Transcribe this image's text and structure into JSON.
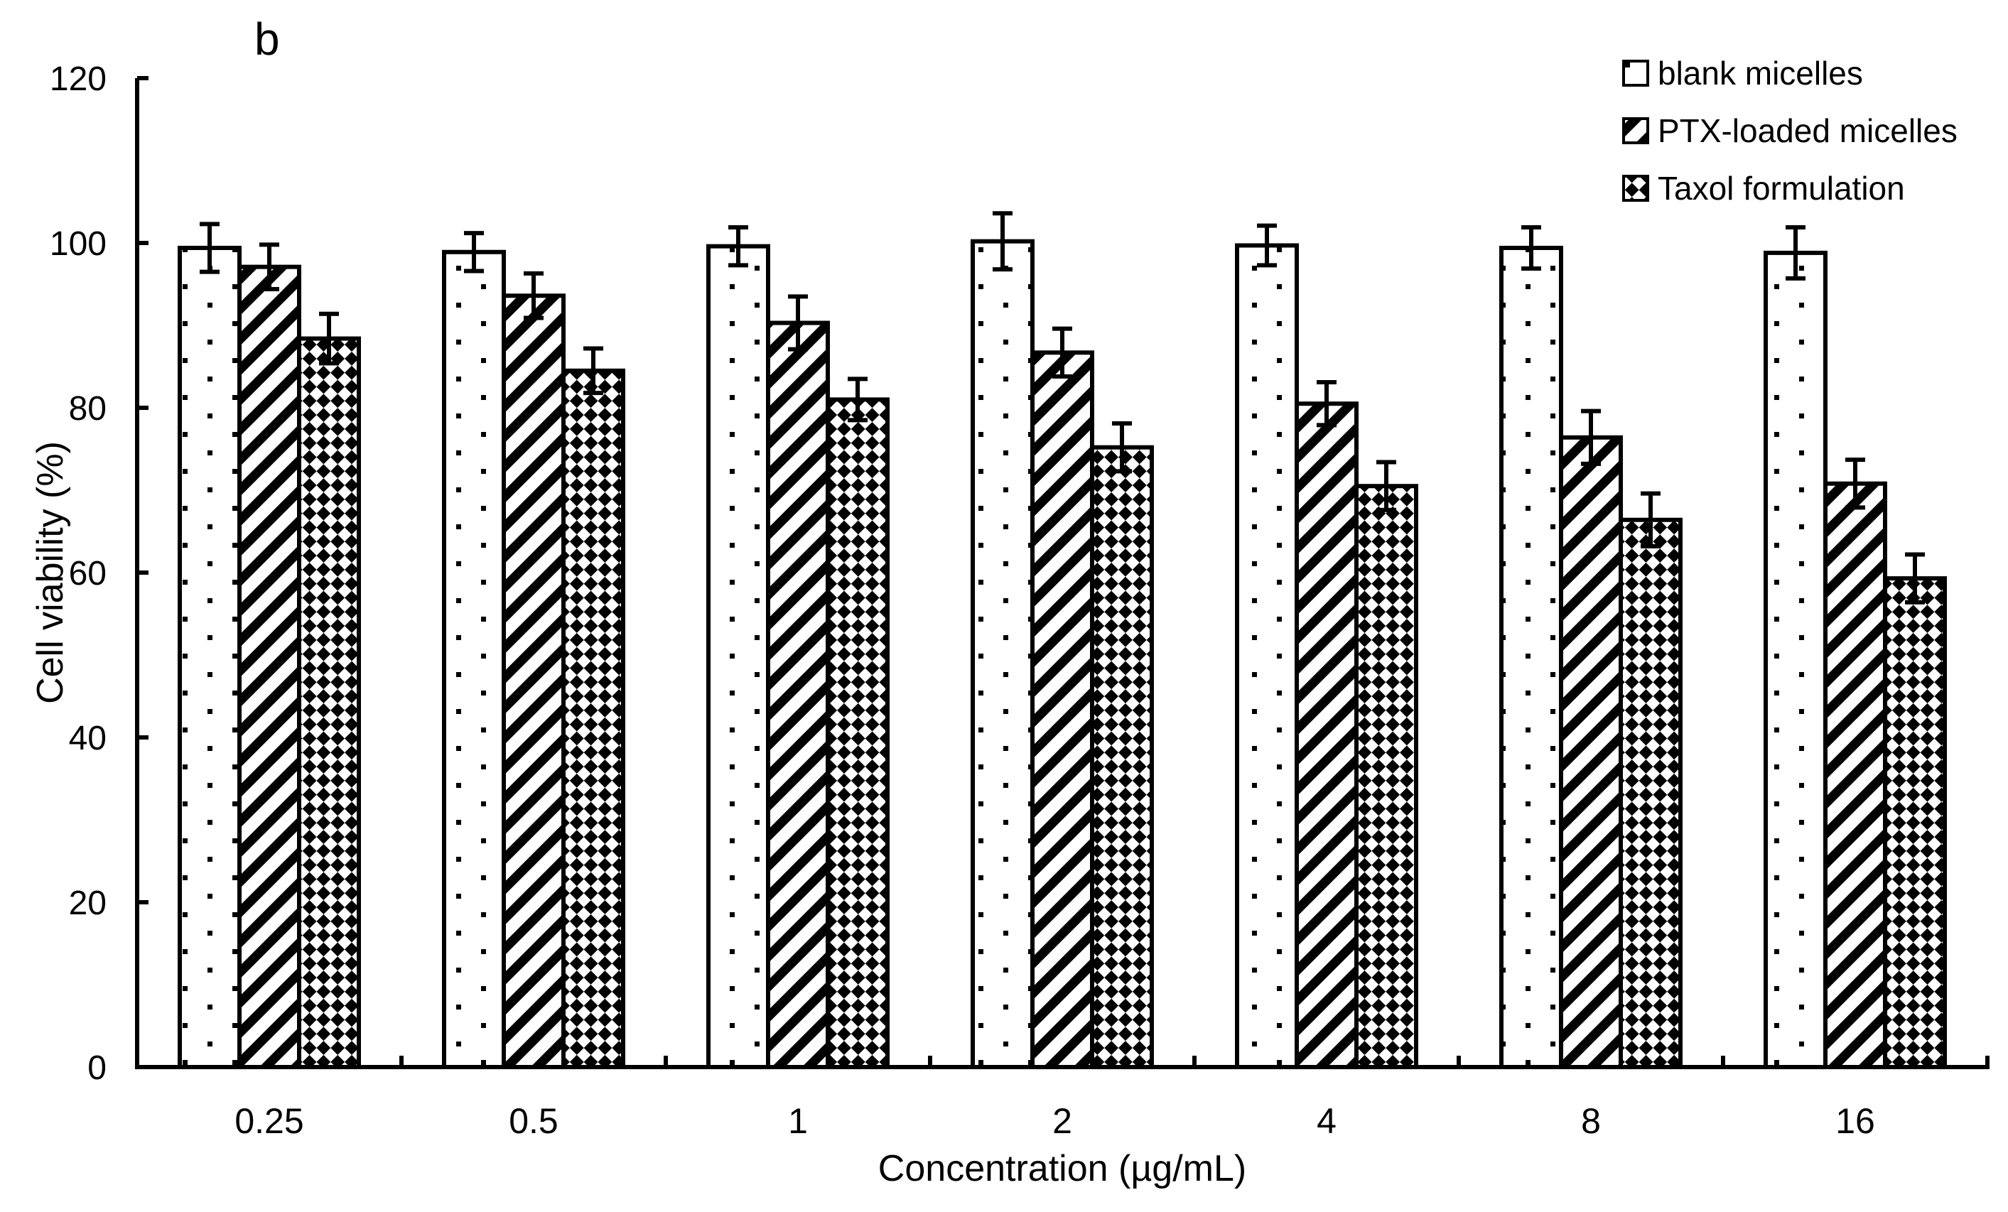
{
  "panel_label": "b",
  "chart_data": {
    "type": "bar",
    "title": "",
    "panel_label": "b",
    "xlabel": "Concentration (µg/mL)",
    "ylabel": "Cell viability (%)",
    "ylim": [
      0,
      120
    ],
    "yticks": [
      0,
      20,
      40,
      60,
      80,
      100,
      120
    ],
    "categories": [
      "0.25",
      "0.5",
      "1",
      "2",
      "4",
      "8",
      "16"
    ],
    "series": [
      {
        "name": "blank micelles",
        "pattern": "dots",
        "values": [
          99.4,
          98.9,
          99.6,
          100.2,
          99.7,
          99.4,
          98.8
        ],
        "errors": [
          2.9,
          2.3,
          2.3,
          3.4,
          2.4,
          2.5,
          3.1
        ]
      },
      {
        "name": "PTX-loaded micelles",
        "pattern": "diagonal-stripes",
        "values": [
          97.1,
          93.6,
          90.3,
          86.7,
          80.5,
          76.4,
          70.8
        ],
        "errors": [
          2.7,
          2.7,
          3.2,
          2.9,
          2.6,
          3.2,
          2.9
        ]
      },
      {
        "name": "Taxol formulation",
        "pattern": "diagonal-crosshatch",
        "values": [
          88.4,
          84.5,
          81.0,
          75.2,
          70.5,
          66.4,
          59.3
        ],
        "errors": [
          3.0,
          2.7,
          2.5,
          2.9,
          2.9,
          3.2,
          2.9
        ]
      }
    ],
    "error_bars": "both",
    "legend_position": "top-right",
    "grid": false,
    "colors": {
      "foreground": "#000000",
      "background": "#ffffff"
    }
  }
}
